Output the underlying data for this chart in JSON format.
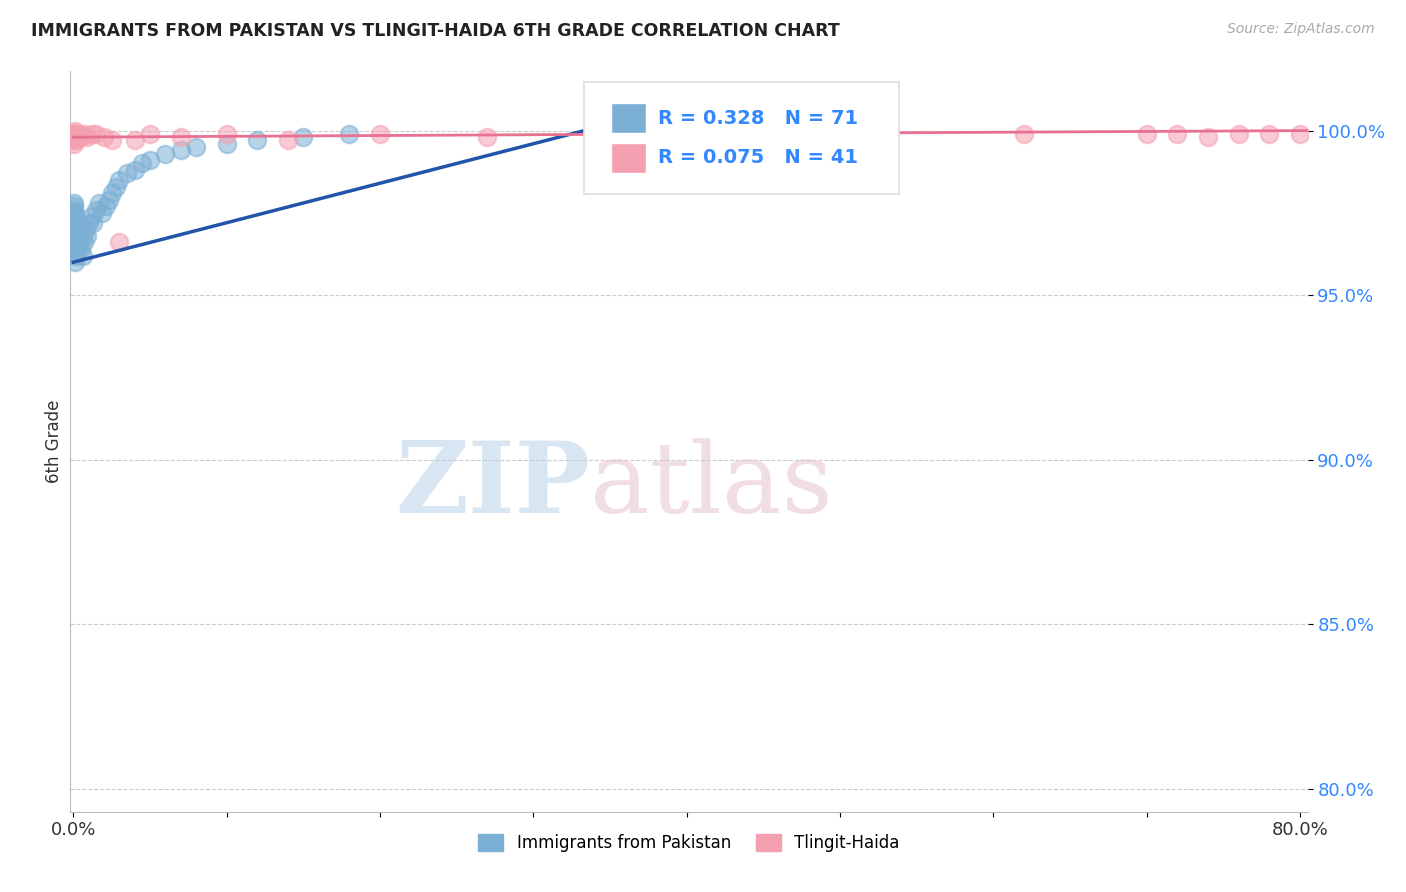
{
  "title": "IMMIGRANTS FROM PAKISTAN VS TLINGIT-HAIDA 6TH GRADE CORRELATION CHART",
  "source": "Source: ZipAtlas.com",
  "ylabel": "6th Grade",
  "ylim": [
    0.793,
    1.018
  ],
  "xlim": [
    -0.002,
    0.805
  ],
  "yticks": [
    0.8,
    0.85,
    0.9,
    0.95,
    1.0
  ],
  "ytick_labels": [
    "80.0%",
    "85.0%",
    "90.0%",
    "95.0%",
    "100.0%"
  ],
  "blue_R": 0.328,
  "blue_N": 71,
  "pink_R": 0.075,
  "pink_N": 41,
  "blue_color": "#7BAFD4",
  "pink_color": "#F4A0B0",
  "blue_line_color": "#2255AA",
  "pink_line_color": "#E87090",
  "watermark_zip": "ZIP",
  "watermark_atlas": "atlas",
  "blue_x": [
    0.0002,
    0.0002,
    0.0002,
    0.0003,
    0.0003,
    0.0003,
    0.0003,
    0.0004,
    0.0004,
    0.0004,
    0.0005,
    0.0005,
    0.0005,
    0.0006,
    0.0006,
    0.0007,
    0.0007,
    0.0008,
    0.0008,
    0.0009,
    0.0009,
    0.001,
    0.001,
    0.001,
    0.001,
    0.0012,
    0.0013,
    0.0014,
    0.0015,
    0.0016,
    0.0017,
    0.0018,
    0.002,
    0.002,
    0.0022,
    0.0024,
    0.0025,
    0.003,
    0.003,
    0.0035,
    0.004,
    0.004,
    0.005,
    0.005,
    0.006,
    0.006,
    0.007,
    0.008,
    0.009,
    0.01,
    0.012,
    0.013,
    0.015,
    0.017,
    0.019,
    0.021,
    0.023,
    0.025,
    0.028,
    0.03,
    0.035,
    0.04,
    0.045,
    0.05,
    0.06,
    0.07,
    0.08,
    0.1,
    0.12,
    0.15,
    0.18
  ],
  "blue_y": [
    0.975,
    0.97,
    0.968,
    0.978,
    0.973,
    0.968,
    0.963,
    0.977,
    0.972,
    0.966,
    0.976,
    0.97,
    0.964,
    0.974,
    0.968,
    0.973,
    0.966,
    0.972,
    0.965,
    0.971,
    0.964,
    0.975,
    0.97,
    0.965,
    0.96,
    0.974,
    0.972,
    0.97,
    0.968,
    0.966,
    0.964,
    0.962,
    0.971,
    0.966,
    0.969,
    0.967,
    0.965,
    0.97,
    0.964,
    0.968,
    0.972,
    0.966,
    0.97,
    0.964,
    0.968,
    0.962,
    0.966,
    0.97,
    0.968,
    0.972,
    0.974,
    0.972,
    0.976,
    0.978,
    0.975,
    0.977,
    0.979,
    0.981,
    0.983,
    0.985,
    0.987,
    0.988,
    0.99,
    0.991,
    0.993,
    0.994,
    0.995,
    0.996,
    0.997,
    0.998,
    0.999
  ],
  "pink_x": [
    0.0002,
    0.0003,
    0.0004,
    0.0005,
    0.0006,
    0.0007,
    0.0008,
    0.001,
    0.001,
    0.001,
    0.0012,
    0.0014,
    0.0016,
    0.002,
    0.003,
    0.004,
    0.005,
    0.007,
    0.009,
    0.012,
    0.015,
    0.02,
    0.025,
    0.03,
    0.04,
    0.05,
    0.07,
    0.1,
    0.14,
    0.2,
    0.27,
    0.35,
    0.43,
    0.52,
    0.62,
    0.7,
    0.72,
    0.74,
    0.76,
    0.78,
    0.8
  ],
  "pink_y": [
    0.998,
    0.999,
    0.997,
    0.999,
    0.998,
    0.996,
    0.999,
    1.0,
    0.999,
    0.998,
    0.999,
    0.998,
    0.997,
    0.999,
    0.998,
    0.999,
    0.998,
    0.999,
    0.998,
    0.999,
    0.999,
    0.998,
    0.997,
    0.966,
    0.997,
    0.999,
    0.998,
    0.999,
    0.997,
    0.999,
    0.998,
    0.999,
    0.999,
    0.998,
    0.999,
    0.999,
    0.999,
    0.998,
    0.999,
    0.999,
    0.999
  ],
  "blue_line_x": [
    0.0,
    0.35
  ],
  "blue_line_y": [
    0.96,
    1.002
  ],
  "pink_line_x": [
    0.0,
    0.805
  ],
  "pink_line_y": [
    0.998,
    1.0
  ]
}
